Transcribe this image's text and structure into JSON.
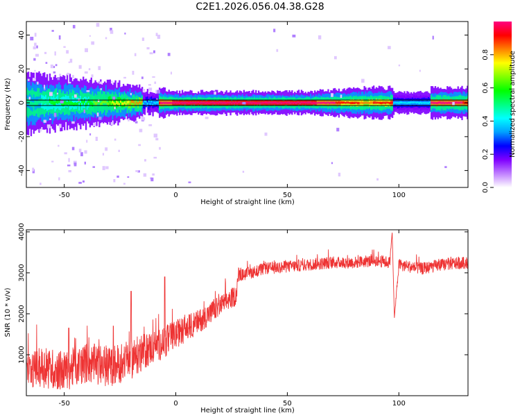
{
  "title": "C2E1.2026.056.04.38.G28",
  "colorbar": {
    "label": "Normalized spectral amplitude",
    "range": [
      0.0,
      1.0
    ],
    "ticks": [
      "0.0",
      "0.2",
      "0.4",
      "0.6",
      "0.8"
    ],
    "tick_values": [
      0.0,
      0.2,
      0.4,
      0.6,
      0.8
    ],
    "colors": [
      "#ffffff",
      "#c080ff",
      "#8000ff",
      "#0000ff",
      "#00a0ff",
      "#00ffff",
      "#00ff80",
      "#00ff00",
      "#80ff00",
      "#ffff00",
      "#ff8000",
      "#ff0000",
      "#ff0080"
    ]
  },
  "chart_data": [
    {
      "type": "heatmap",
      "xlabel": "Height of straight line (km)",
      "ylabel": "Frequency (Hz)",
      "xlim": [
        -67,
        131
      ],
      "ylim": [
        -50,
        48
      ],
      "x_ticks": [
        -50,
        0,
        50,
        100
      ],
      "y_ticks": [
        -40,
        -20,
        0,
        20,
        40
      ],
      "x_tick_labels": [
        "-50",
        "0",
        "50",
        "100"
      ],
      "y_tick_labels": [
        "-40",
        "-20",
        "0",
        "20",
        "40"
      ],
      "gaps": [
        [
          -15,
          -8
        ],
        [
          97,
          114
        ]
      ],
      "band": [
        {
          "x": -67,
          "y": 0,
          "width": 8,
          "amp": 0.35
        },
        {
          "x": -55,
          "y": 1,
          "width": 7,
          "amp": 0.4
        },
        {
          "x": -40,
          "y": 0,
          "width": 6,
          "amp": 0.45
        },
        {
          "x": -25,
          "y": 0,
          "width": 5,
          "amp": 0.6
        },
        {
          "x": -16,
          "y": 0,
          "width": 4,
          "amp": 0.7
        },
        {
          "x": -8,
          "y": 0,
          "width": 4,
          "amp": 0.8
        },
        {
          "x": 0,
          "y": 0,
          "width": 3,
          "amp": 0.9
        },
        {
          "x": 30,
          "y": 0,
          "width": 3,
          "amp": 0.95
        },
        {
          "x": 60,
          "y": 0,
          "width": 3,
          "amp": 0.9
        },
        {
          "x": 85,
          "y": 0,
          "width": 4,
          "amp": 0.7
        },
        {
          "x": 97,
          "y": 0,
          "width": 4,
          "amp": 0.8
        },
        {
          "x": 114,
          "y": 0,
          "width": 4,
          "amp": 0.85
        },
        {
          "x": 131,
          "y": 0,
          "width": 4,
          "amp": 0.8
        }
      ]
    },
    {
      "type": "line",
      "xlabel": "Height of straight line (km)",
      "ylabel": "SNR (10 * v/v)",
      "xlim": [
        -67,
        131
      ],
      "ylim": [
        0,
        4050
      ],
      "x_ticks": [
        -50,
        0,
        50,
        100
      ],
      "y_ticks": [
        1000,
        2000,
        3000,
        4000
      ],
      "x_tick_labels": [
        "-50",
        "0",
        "50",
        "100"
      ],
      "y_tick_labels": [
        "1000",
        "2000",
        "3000",
        "4000"
      ],
      "series": [
        {
          "color": "#ee3333",
          "x": [
            -67,
            -60,
            -50,
            -40,
            -30,
            -20,
            -10,
            -5,
            0,
            10,
            20,
            27,
            28,
            30,
            40,
            50,
            60,
            70,
            80,
            90,
            96,
            97,
            98,
            100,
            110,
            120,
            131
          ],
          "y": [
            600,
            700,
            600,
            800,
            700,
            900,
            1200,
            1300,
            1500,
            1800,
            2200,
            2450,
            2950,
            2950,
            3100,
            3150,
            3200,
            3250,
            3250,
            3300,
            3250,
            4000,
            1900,
            3200,
            3100,
            3200,
            3250
          ],
          "noise": [
            400,
            500,
            500,
            500,
            500,
            500,
            400,
            400,
            350,
            300,
            250,
            250,
            200,
            150,
            150,
            150,
            150,
            150,
            150,
            150,
            150,
            0,
            0,
            150,
            150,
            150,
            150
          ],
          "spikes": [
            {
              "x": -20,
              "y": 2550
            },
            {
              "x": -5,
              "y": 2900
            },
            {
              "x": -48,
              "y": 1650
            },
            {
              "x": -28,
              "y": 1700
            }
          ]
        }
      ]
    }
  ]
}
